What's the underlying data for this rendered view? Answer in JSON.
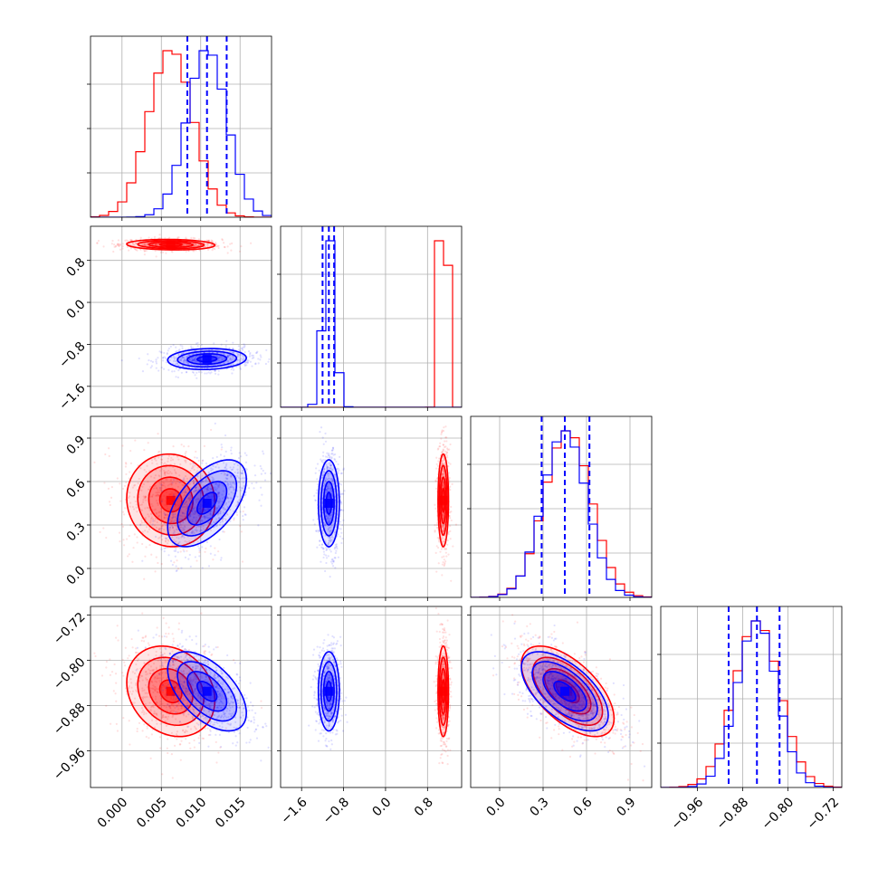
{
  "chart_data": {
    "type": "corner",
    "n_params": 4,
    "grid": true,
    "series": [
      {
        "color": "#ff0000",
        "mean": [
          0.0062,
          1.1,
          0.47,
          -0.855
        ],
        "std": [
          0.0028,
          0.05,
          0.16,
          0.04
        ],
        "corr": [
          [
            1,
            -0.1,
            -0.05,
            -0.2
          ],
          [
            -0.1,
            1,
            0.0,
            0.0
          ],
          [
            -0.05,
            0.0,
            1,
            -0.6
          ],
          [
            -0.2,
            0.0,
            -0.6,
            1
          ]
        ]
      },
      {
        "color": "#0000ff",
        "mean": [
          0.0108,
          -1.08,
          0.45,
          -0.855
        ],
        "std": [
          0.0025,
          0.1,
          0.15,
          0.035
        ],
        "corr": [
          [
            1,
            0.1,
            0.55,
            -0.55
          ],
          [
            0.1,
            1,
            0.0,
            0.0
          ],
          [
            0.55,
            0.0,
            1,
            -0.6
          ],
          [
            -0.55,
            0.0,
            -0.6,
            1
          ]
        ]
      }
    ],
    "quantile_lines": {
      "color": "#0000ff",
      "values": [
        [
          0.0083,
          0.0108,
          0.0133
        ],
        [
          -1.2,
          -1.08,
          -0.98
        ],
        [
          0.29,
          0.45,
          0.62
        ],
        [
          -0.905,
          -0.855,
          -0.815
        ]
      ]
    },
    "ranges": [
      [
        -0.004,
        0.019
      ],
      [
        -2.0,
        1.45
      ],
      [
        -0.2,
        1.05
      ],
      [
        -1.025,
        -0.705
      ]
    ],
    "ticks": [
      [
        "0.000",
        "0.005",
        "0.010",
        "0.015"
      ],
      [
        "−1.6",
        "−0.8",
        "0.0",
        "0.8"
      ],
      [
        "0.0",
        "0.3",
        "0.6",
        "0.9"
      ],
      [
        "−0.96",
        "−0.88",
        "−0.80",
        "−0.72"
      ]
    ],
    "tick_values": [
      [
        0.0,
        0.005,
        0.01,
        0.015
      ],
      [
        -1.6,
        -0.8,
        0.0,
        0.8
      ],
      [
        0.0,
        0.3,
        0.6,
        0.9
      ],
      [
        -0.96,
        -0.88,
        -0.8,
        -0.72
      ]
    ],
    "hist_ymax_ticks": 4,
    "title": "",
    "xlabel": "",
    "ylabel": ""
  }
}
